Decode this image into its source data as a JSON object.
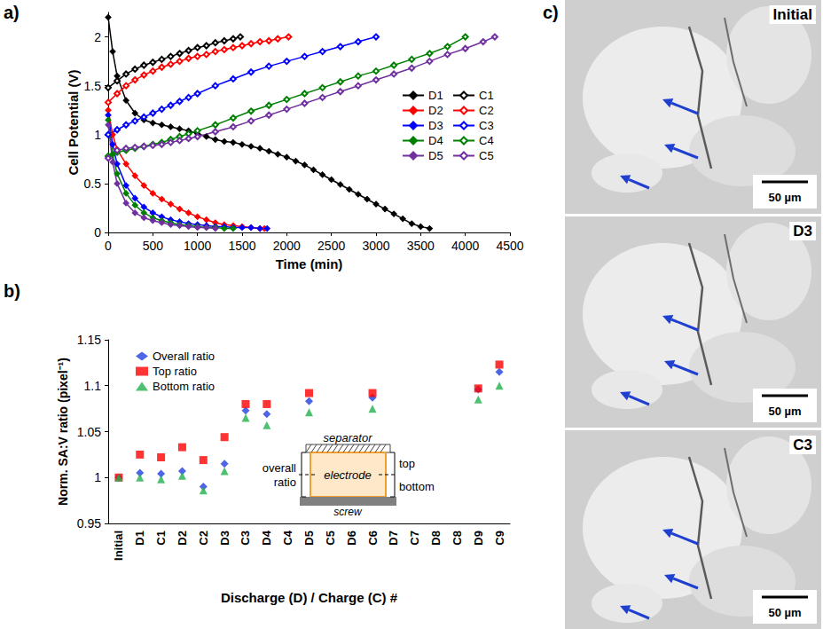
{
  "chart_data": [
    {
      "panel": "a)",
      "type": "line",
      "x_label": "Time (min)",
      "y_label": "Cell Potential (V)",
      "xlim": [
        0,
        4500
      ],
      "xticks": [
        0,
        500,
        1000,
        1500,
        2000,
        2500,
        3000,
        3500,
        4000,
        4500
      ],
      "ylim": [
        0,
        2.25
      ],
      "yticks": [
        0,
        0.5,
        1,
        1.5,
        2
      ],
      "grid": false,
      "legend": "right",
      "series": [
        {
          "name": "D1",
          "color": "#000000",
          "marker": "diamond",
          "x": [
            0,
            50,
            100,
            200,
            300,
            400,
            500,
            600,
            700,
            800,
            900,
            1000,
            1100,
            1200,
            1300,
            1400,
            1500,
            1600,
            1700,
            1800,
            1900,
            2000,
            2100,
            2200,
            2300,
            2400,
            2500,
            2600,
            2700,
            2800,
            2900,
            3000,
            3100,
            3200,
            3300,
            3400,
            3500,
            3600
          ],
          "values": [
            2.2,
            1.85,
            1.6,
            1.35,
            1.22,
            1.15,
            1.12,
            1.1,
            1.08,
            1.06,
            1.04,
            1.01,
            0.98,
            0.95,
            0.93,
            0.92,
            0.9,
            0.88,
            0.86,
            0.83,
            0.8,
            0.77,
            0.73,
            0.69,
            0.64,
            0.59,
            0.54,
            0.49,
            0.44,
            0.39,
            0.34,
            0.29,
            0.24,
            0.19,
            0.14,
            0.09,
            0.06,
            0.04
          ]
        },
        {
          "name": "D2",
          "color": "#ff0000",
          "marker": "diamond",
          "x": [
            0,
            50,
            100,
            200,
            300,
            400,
            500,
            600,
            700,
            800,
            900,
            1000,
            1100,
            1200,
            1300,
            1400,
            1500,
            1600,
            1700,
            1750
          ],
          "values": [
            1.25,
            1.0,
            0.85,
            0.7,
            0.58,
            0.48,
            0.4,
            0.34,
            0.29,
            0.24,
            0.2,
            0.16,
            0.13,
            0.1,
            0.08,
            0.07,
            0.06,
            0.05,
            0.04,
            0.04
          ]
        },
        {
          "name": "D3",
          "color": "#0000ff",
          "marker": "diamond",
          "x": [
            0,
            50,
            100,
            200,
            300,
            400,
            500,
            600,
            700,
            800,
            900,
            1000,
            1100,
            1200,
            1300,
            1400,
            1500,
            1600,
            1700,
            1780
          ],
          "values": [
            1.2,
            0.9,
            0.7,
            0.48,
            0.35,
            0.26,
            0.2,
            0.16,
            0.13,
            0.11,
            0.09,
            0.08,
            0.07,
            0.06,
            0.06,
            0.05,
            0.05,
            0.05,
            0.04,
            0.04
          ]
        },
        {
          "name": "D4",
          "color": "#008000",
          "marker": "diamond",
          "x": [
            0,
            50,
            100,
            200,
            300,
            400,
            500,
            600,
            700,
            800,
            900,
            1000,
            1100,
            1200,
            1300,
            1400
          ],
          "values": [
            1.15,
            0.8,
            0.6,
            0.4,
            0.28,
            0.2,
            0.15,
            0.12,
            0.1,
            0.08,
            0.07,
            0.06,
            0.05,
            0.05,
            0.04,
            0.04
          ]
        },
        {
          "name": "D5",
          "color": "#7030a0",
          "marker": "diamond",
          "x": [
            0,
            50,
            100,
            200,
            300,
            400,
            500,
            600,
            700,
            800,
            900,
            1000,
            1100,
            1200
          ],
          "values": [
            1.1,
            0.72,
            0.5,
            0.3,
            0.2,
            0.15,
            0.12,
            0.1,
            0.08,
            0.07,
            0.06,
            0.05,
            0.05,
            0.04
          ]
        },
        {
          "name": "C1",
          "color": "#000000",
          "marker": "open diamond",
          "x": [
            0,
            100,
            200,
            300,
            400,
            500,
            600,
            700,
            800,
            900,
            1000,
            1100,
            1200,
            1300,
            1400,
            1480
          ],
          "values": [
            1.48,
            1.55,
            1.62,
            1.67,
            1.71,
            1.74,
            1.77,
            1.8,
            1.83,
            1.86,
            1.89,
            1.91,
            1.94,
            1.96,
            1.98,
            2.0
          ]
        },
        {
          "name": "C2",
          "color": "#ff0000",
          "marker": "open diamond",
          "x": [
            0,
            100,
            200,
            300,
            400,
            500,
            600,
            700,
            800,
            900,
            1000,
            1100,
            1200,
            1300,
            1400,
            1500,
            1600,
            1700,
            1800,
            1900,
            2020
          ],
          "values": [
            1.33,
            1.42,
            1.5,
            1.56,
            1.61,
            1.65,
            1.69,
            1.72,
            1.75,
            1.78,
            1.8,
            1.82,
            1.85,
            1.87,
            1.89,
            1.91,
            1.93,
            1.95,
            1.96,
            1.98,
            2.0
          ]
        },
        {
          "name": "C3",
          "color": "#0000ff",
          "marker": "open diamond",
          "x": [
            0,
            100,
            200,
            300,
            400,
            500,
            600,
            700,
            800,
            900,
            1000,
            1200,
            1400,
            1600,
            1800,
            2000,
            2200,
            2400,
            2600,
            2800,
            3000
          ],
          "values": [
            1.0,
            1.05,
            1.1,
            1.14,
            1.18,
            1.22,
            1.26,
            1.3,
            1.34,
            1.38,
            1.42,
            1.5,
            1.57,
            1.64,
            1.7,
            1.75,
            1.8,
            1.85,
            1.9,
            1.95,
            2.0
          ]
        },
        {
          "name": "C4",
          "color": "#008000",
          "marker": "open diamond",
          "x": [
            0,
            100,
            200,
            300,
            400,
            500,
            600,
            700,
            800,
            900,
            1000,
            1200,
            1400,
            1600,
            1800,
            2000,
            2200,
            2400,
            2600,
            2800,
            3000,
            3200,
            3400,
            3600,
            3800,
            4000
          ],
          "values": [
            0.78,
            0.82,
            0.84,
            0.86,
            0.88,
            0.9,
            0.92,
            0.95,
            0.98,
            1.01,
            1.04,
            1.1,
            1.17,
            1.24,
            1.3,
            1.36,
            1.42,
            1.48,
            1.54,
            1.6,
            1.65,
            1.71,
            1.77,
            1.83,
            1.9,
            2.0
          ]
        },
        {
          "name": "C5",
          "color": "#7030a0",
          "marker": "open diamond",
          "x": [
            0,
            100,
            200,
            300,
            400,
            500,
            600,
            700,
            800,
            900,
            1000,
            1200,
            1400,
            1600,
            1800,
            2000,
            2200,
            2400,
            2600,
            2800,
            3000,
            3200,
            3400,
            3600,
            3800,
            4000,
            4200,
            4330
          ],
          "values": [
            0.76,
            0.84,
            0.86,
            0.87,
            0.88,
            0.89,
            0.9,
            0.92,
            0.94,
            0.96,
            0.98,
            1.03,
            1.08,
            1.14,
            1.2,
            1.26,
            1.32,
            1.38,
            1.44,
            1.5,
            1.56,
            1.62,
            1.68,
            1.75,
            1.82,
            1.88,
            1.95,
            2.0
          ]
        }
      ]
    },
    {
      "panel": "b)",
      "type": "scatter",
      "x_label": "Discharge (D) / Charge (C) #",
      "y_label": "Norm. SA:V ratio (pixel⁻¹)",
      "categories": [
        "Initial",
        "D1",
        "C1",
        "D2",
        "C2",
        "D3",
        "C3",
        "D4",
        "C4",
        "D5",
        "C5",
        "D6",
        "C6",
        "D7",
        "C7",
        "D8",
        "C8",
        "D9",
        "C9"
      ],
      "ylim": [
        0.95,
        1.15
      ],
      "yticks": [
        0.95,
        1,
        1.05,
        1.1,
        1.15
      ],
      "grid": false,
      "legend": "upper left",
      "series": [
        {
          "name": "Overall ratio",
          "color": "#2040e0",
          "marker": "diamond",
          "values": [
            1.0,
            1.005,
            1.004,
            1.007,
            0.99,
            1.015,
            1.073,
            1.069,
            null,
            1.083,
            null,
            null,
            1.087,
            null,
            null,
            null,
            null,
            1.096,
            1.115
          ]
        },
        {
          "name": "Top ratio",
          "color": "#ff0000",
          "marker": "square",
          "values": [
            1.0,
            1.025,
            1.022,
            1.033,
            1.019,
            1.044,
            1.08,
            1.08,
            null,
            1.092,
            null,
            null,
            1.092,
            null,
            null,
            null,
            null,
            1.097,
            1.123
          ]
        },
        {
          "name": "Bottom ratio",
          "color": "#22b14c",
          "marker": "triangle",
          "values": [
            1.0,
            1.0,
            0.998,
            1.002,
            0.986,
            1.007,
            1.065,
            1.057,
            null,
            1.071,
            null,
            null,
            1.075,
            null,
            null,
            null,
            null,
            1.085,
            1.1
          ]
        }
      ],
      "inset": {
        "layers": [
          "separator",
          "electrode",
          "screw"
        ],
        "left_label": "overall ratio",
        "right_labels": [
          "top",
          "bottom"
        ]
      }
    }
  ],
  "images": {
    "panel": "c)",
    "frames": [
      {
        "label": "Initial",
        "scale_bar": "50 µm"
      },
      {
        "label": "D3",
        "scale_bar": "50 µm"
      },
      {
        "label": "C3",
        "scale_bar": "50 µm"
      }
    ]
  }
}
